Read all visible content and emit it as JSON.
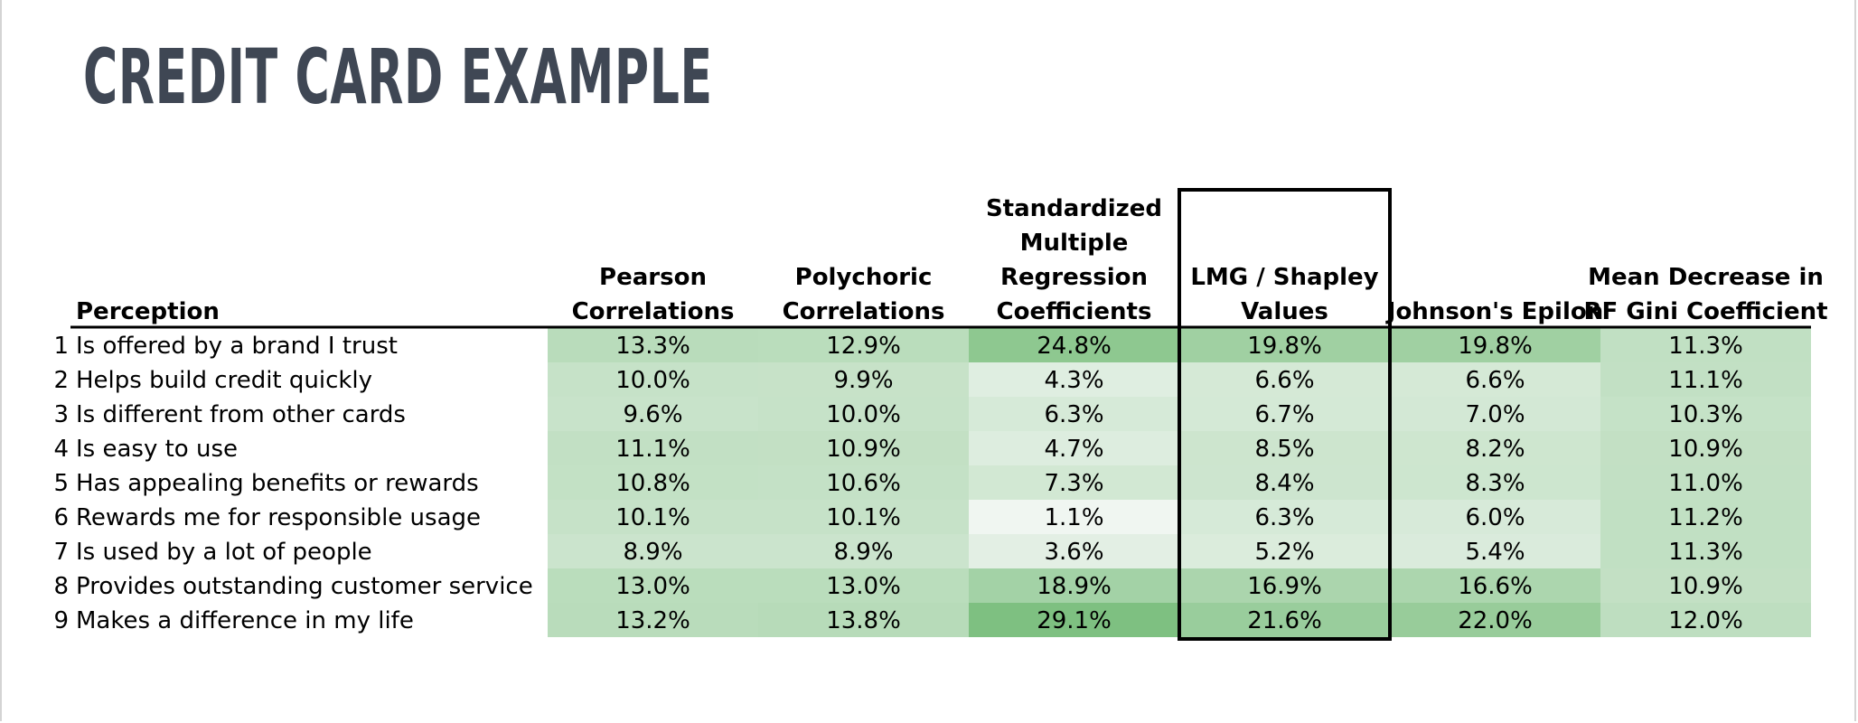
{
  "title": "CREDIT CARD EXAMPLE",
  "colors": {
    "title": "#3f4754",
    "heat_low": "#f7f9f8",
    "heat_high": "#7bbf7e",
    "highlight_border": "#000000"
  },
  "chart_data": {
    "type": "heatmap",
    "title": "CREDIT CARD EXAMPLE",
    "row_header": "Perception",
    "columns": [
      {
        "label_lines": [
          "Pearson",
          "Correlations"
        ],
        "highlighted": false
      },
      {
        "label_lines": [
          "Polychoric",
          "Correlations"
        ],
        "highlighted": false
      },
      {
        "label_lines": [
          "Standardized",
          "Multiple",
          "Regression",
          "Coefficients"
        ],
        "highlighted": false
      },
      {
        "label_lines": [
          "LMG / Shapley",
          "Values"
        ],
        "highlighted": true
      },
      {
        "label_lines": [
          "Johnson's Epilon"
        ],
        "highlighted": false
      },
      {
        "label_lines": [
          "Mean Decrease in",
          "RF Gini Coefficient"
        ],
        "highlighted": false
      }
    ],
    "rows": [
      {
        "num": "1",
        "label": "Is offered by a brand I trust",
        "display": [
          "13.3%",
          "12.9%",
          "24.8%",
          "19.8%",
          "19.8%",
          "11.3%"
        ]
      },
      {
        "num": "2",
        "label": "Helps build credit quickly",
        "display": [
          "10.0%",
          "9.9%",
          "4.3%",
          "6.6%",
          "6.6%",
          "11.1%"
        ]
      },
      {
        "num": "3",
        "label": "Is different from other cards",
        "display": [
          "9.6%",
          "10.0%",
          "6.3%",
          "6.7%",
          "7.0%",
          "10.3%"
        ]
      },
      {
        "num": "4",
        "label": "Is easy to use",
        "display": [
          "11.1%",
          "10.9%",
          "4.7%",
          "8.5%",
          "8.2%",
          "10.9%"
        ]
      },
      {
        "num": "5",
        "label": "Has appealing benefits or rewards",
        "display": [
          "10.8%",
          "10.6%",
          "7.3%",
          "8.4%",
          "8.3%",
          "11.0%"
        ]
      },
      {
        "num": "6",
        "label": "Rewards me for responsible usage",
        "display": [
          "10.1%",
          "10.1%",
          "1.1%",
          "6.3%",
          "6.0%",
          "11.2%"
        ]
      },
      {
        "num": "7",
        "label": "Is used by a lot of people",
        "display": [
          "8.9%",
          "8.9%",
          "3.6%",
          "5.2%",
          "5.4%",
          "11.3%"
        ]
      },
      {
        "num": "8",
        "label": "Provides outstanding customer service",
        "display": [
          "13.0%",
          "13.0%",
          "18.9%",
          "16.9%",
          "16.6%",
          "10.9%"
        ]
      },
      {
        "num": "9",
        "label": "Makes a difference in my life",
        "display": [
          "13.2%",
          "13.8%",
          "29.1%",
          "21.6%",
          "22.0%",
          "12.0%"
        ]
      }
    ],
    "values": [
      [
        13.3,
        12.9,
        24.8,
        19.8,
        19.8,
        11.3
      ],
      [
        10.0,
        9.9,
        4.3,
        6.6,
        6.6,
        11.1
      ],
      [
        9.6,
        10.0,
        6.3,
        6.7,
        7.0,
        10.3
      ],
      [
        11.1,
        10.9,
        4.7,
        8.5,
        8.2,
        10.9
      ],
      [
        10.8,
        10.6,
        7.3,
        8.4,
        8.3,
        11.0
      ],
      [
        10.1,
        10.1,
        1.1,
        6.3,
        6.0,
        11.2
      ],
      [
        8.9,
        8.9,
        3.6,
        5.2,
        5.4,
        11.3
      ],
      [
        13.0,
        13.0,
        18.9,
        16.9,
        16.6,
        10.9
      ],
      [
        13.2,
        13.8,
        29.1,
        21.6,
        22.0,
        12.0
      ]
    ],
    "color_range": [
      0,
      30
    ],
    "xlabel": "",
    "ylabel": ""
  }
}
